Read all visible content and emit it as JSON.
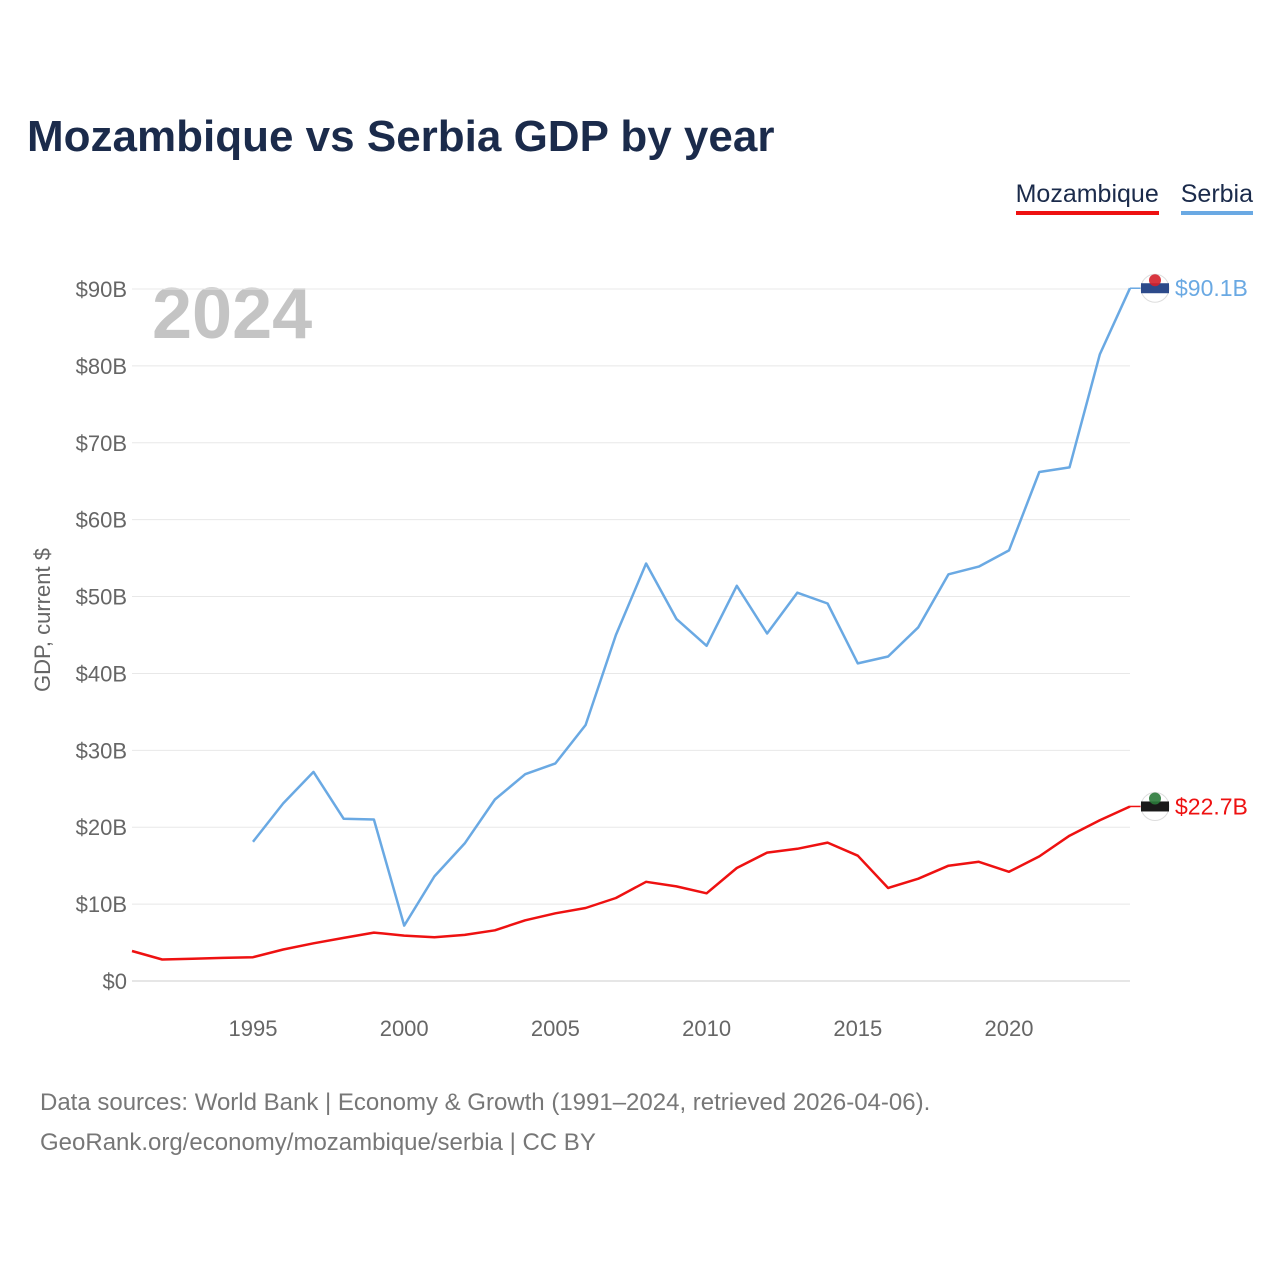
{
  "title": "Mozambique vs Serbia GDP by year",
  "legend": [
    {
      "label": "Mozambique",
      "color": "#ee1111"
    },
    {
      "label": "Serbia",
      "color": "#6aa9e3"
    }
  ],
  "year_watermark": "2024",
  "source_line1": "Data sources: World Bank | Economy & Growth (1991–2024, retrieved 2026-04-06).",
  "source_line2": "GeoRank.org/economy/mozambique/serbia | CC BY",
  "chart_data": {
    "type": "line",
    "title": "Mozambique vs Serbia GDP by year",
    "xlabel": "",
    "ylabel": "GDP, current $",
    "xlim": [
      1991,
      2024
    ],
    "ylim": [
      0,
      90
    ],
    "xticks": [
      1995,
      2000,
      2005,
      2010,
      2015,
      2020
    ],
    "yticks": [
      0,
      10,
      20,
      30,
      40,
      50,
      60,
      70,
      80,
      90
    ],
    "ytick_labels": [
      "$0",
      "$10B",
      "$20B",
      "$30B",
      "$40B",
      "$50B",
      "$60B",
      "$70B",
      "$80B",
      "$90B"
    ],
    "grid": true,
    "series": [
      {
        "name": "Mozambique",
        "color": "#ee1111",
        "end_label": "$22.7B",
        "x": [
          1991,
          1992,
          1993,
          1994,
          1995,
          1996,
          1997,
          1998,
          1999,
          2000,
          2001,
          2002,
          2003,
          2004,
          2005,
          2006,
          2007,
          2008,
          2009,
          2010,
          2011,
          2012,
          2013,
          2014,
          2015,
          2016,
          2017,
          2018,
          2019,
          2020,
          2021,
          2022,
          2023,
          2024
        ],
        "values": [
          3.9,
          2.8,
          2.9,
          3.0,
          3.1,
          4.1,
          4.9,
          5.6,
          6.3,
          5.9,
          5.7,
          6.0,
          6.6,
          7.9,
          8.8,
          9.5,
          10.8,
          12.9,
          12.3,
          11.4,
          14.7,
          16.7,
          17.2,
          18.0,
          16.3,
          12.1,
          13.3,
          15.0,
          15.5,
          14.2,
          16.2,
          18.9,
          20.9,
          22.7
        ]
      },
      {
        "name": "Serbia",
        "color": "#6aa9e3",
        "end_label": "$90.1B",
        "x": [
          1995,
          1996,
          1997,
          1998,
          1999,
          2000,
          2001,
          2002,
          2003,
          2004,
          2005,
          2006,
          2007,
          2008,
          2009,
          2010,
          2011,
          2012,
          2013,
          2014,
          2015,
          2016,
          2017,
          2018,
          2019,
          2020,
          2021,
          2022,
          2023,
          2024
        ],
        "values": [
          18.1,
          23.1,
          27.2,
          21.1,
          21.0,
          7.2,
          13.6,
          17.9,
          23.6,
          26.9,
          28.3,
          33.3,
          45.0,
          54.3,
          47.1,
          43.6,
          51.4,
          45.2,
          50.5,
          49.1,
          41.3,
          42.2,
          46.0,
          52.9,
          53.9,
          56.0,
          66.2,
          66.8,
          81.5,
          90.1
        ]
      }
    ]
  }
}
